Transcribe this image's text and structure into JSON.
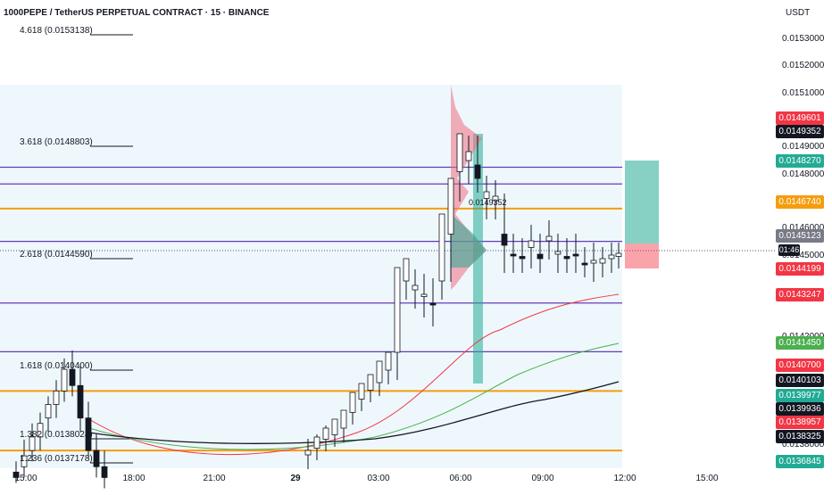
{
  "header": {
    "title": "1000PEPE / TetherUS PERPETUAL CONTRACT · 15 · BINANCE"
  },
  "scale": {
    "unit": "USDT"
  },
  "fib_levels": [
    {
      "label": "4.618 (0.0153138)",
      "price": 0.0153138
    },
    {
      "label": "3.618 (0.0148803)",
      "price": 0.0148803
    },
    {
      "label": "2.618 (0.0144590)",
      "price": 0.014459
    },
    {
      "label": "1.618 (0.0140400)",
      "price": 0.01404
    },
    {
      "label": "1.382 (0.0138024)",
      "price": 0.0138024
    },
    {
      "label": "1.236 (0.0137178)",
      "price": 0.0137178
    }
  ],
  "y_ticks": [
    "0.0153000",
    "0.0152000",
    "0.0151000",
    "0.0149000",
    "0.0148000",
    "0.0147000",
    "0.0146000",
    "0.0145000",
    "0.0142000",
    "0.0141000",
    "0.0139000",
    "0.0138000"
  ],
  "x_ticks": [
    {
      "label": "15:00",
      "bold": false
    },
    {
      "label": "18:00",
      "bold": false
    },
    {
      "label": "21:00",
      "bold": false
    },
    {
      "label": "29",
      "bold": true
    },
    {
      "label": "03:00",
      "bold": false
    },
    {
      "label": "06:00",
      "bold": false
    },
    {
      "label": "09:00",
      "bold": false
    },
    {
      "label": "12:00",
      "bold": false
    },
    {
      "label": "15:00",
      "bold": false
    }
  ],
  "price_badges": [
    {
      "text": "0.0149601",
      "color": "#f23645"
    },
    {
      "text": "0.0149352",
      "color": "#131722"
    },
    {
      "text": "0.0148270",
      "color": "#22ab94"
    },
    {
      "text": "0.0146740",
      "color": "#f59d0e"
    },
    {
      "text": "0.0145123",
      "color": "#787b86"
    },
    {
      "text": "0.0144199",
      "color": "#f23645"
    },
    {
      "text": "0.0143247",
      "color": "#f23645"
    },
    {
      "text": "0.0141450",
      "color": "#4caf50"
    },
    {
      "text": "0.0140700",
      "color": "#f23645"
    },
    {
      "text": "0.0140103",
      "color": "#131722"
    },
    {
      "text": "0.0139977",
      "color": "#22ab94"
    },
    {
      "text": "0.0139936",
      "color": "#131722"
    },
    {
      "text": "0.0138957",
      "color": "#f23645"
    },
    {
      "text": "0.0138325",
      "color": "#131722"
    },
    {
      "text": "0.0136845",
      "color": "#22ab94"
    }
  ],
  "countdown": "01:46",
  "volume_profile": {
    "poc_label": "0.0149352"
  },
  "colors": {
    "bull": "#ffffff",
    "bear": "#131722",
    "ma_red": "#f23645",
    "ma_green": "#4caf50",
    "ma_black": "#131722",
    "orange": "#f59d0e",
    "purple": "#673ab7",
    "profit": "#22ab94",
    "loss": "#f23645"
  },
  "chart_data": {
    "type": "candlestick",
    "symbol": "1000PEPE / TetherUS PERPETUAL CONTRACT",
    "interval": "15",
    "exchange": "BINANCE",
    "x_range": [
      "15:00",
      "15:00"
    ],
    "ylim": [
      0.01368,
      0.01535
    ],
    "horizontal_lines": [
      {
        "price": 0.014827,
        "color": "#673ab7"
      },
      {
        "price": 0.014765,
        "color": "#673ab7"
      },
      {
        "price": 0.014674,
        "color": "#f59d0e"
      },
      {
        "price": 0.014553,
        "color": "#673ab7"
      },
      {
        "price": 0.014325,
        "color": "#673ab7"
      },
      {
        "price": 0.014145,
        "color": "#673ab7"
      },
      {
        "price": 0.014,
        "color": "#f59d0e"
      },
      {
        "price": 0.01378,
        "color": "#f59d0e"
      }
    ],
    "candles": [
      {
        "o": 0.0137,
        "h": 0.01374,
        "l": 0.01366,
        "c": 0.01368
      },
      {
        "o": 0.01372,
        "h": 0.01382,
        "l": 0.01368,
        "c": 0.01376
      },
      {
        "o": 0.01378,
        "h": 0.01388,
        "l": 0.01374,
        "c": 0.01383
      },
      {
        "o": 0.01383,
        "h": 0.01392,
        "l": 0.01378,
        "c": 0.01388
      },
      {
        "o": 0.0139,
        "h": 0.01398,
        "l": 0.01385,
        "c": 0.01395
      },
      {
        "o": 0.01395,
        "h": 0.01404,
        "l": 0.0139,
        "c": 0.014
      },
      {
        "o": 0.014,
        "h": 0.01412,
        "l": 0.01396,
        "c": 0.01408
      },
      {
        "o": 0.01408,
        "h": 0.01415,
        "l": 0.01398,
        "c": 0.01402
      },
      {
        "o": 0.01402,
        "h": 0.0141,
        "l": 0.01385,
        "c": 0.0139
      },
      {
        "o": 0.0139,
        "h": 0.01396,
        "l": 0.01375,
        "c": 0.01378
      },
      {
        "o": 0.01378,
        "h": 0.01384,
        "l": 0.01368,
        "c": 0.01372
      },
      {
        "o": 0.01372,
        "h": 0.01378,
        "l": 0.01364,
        "c": 0.01368
      }
    ]
  }
}
